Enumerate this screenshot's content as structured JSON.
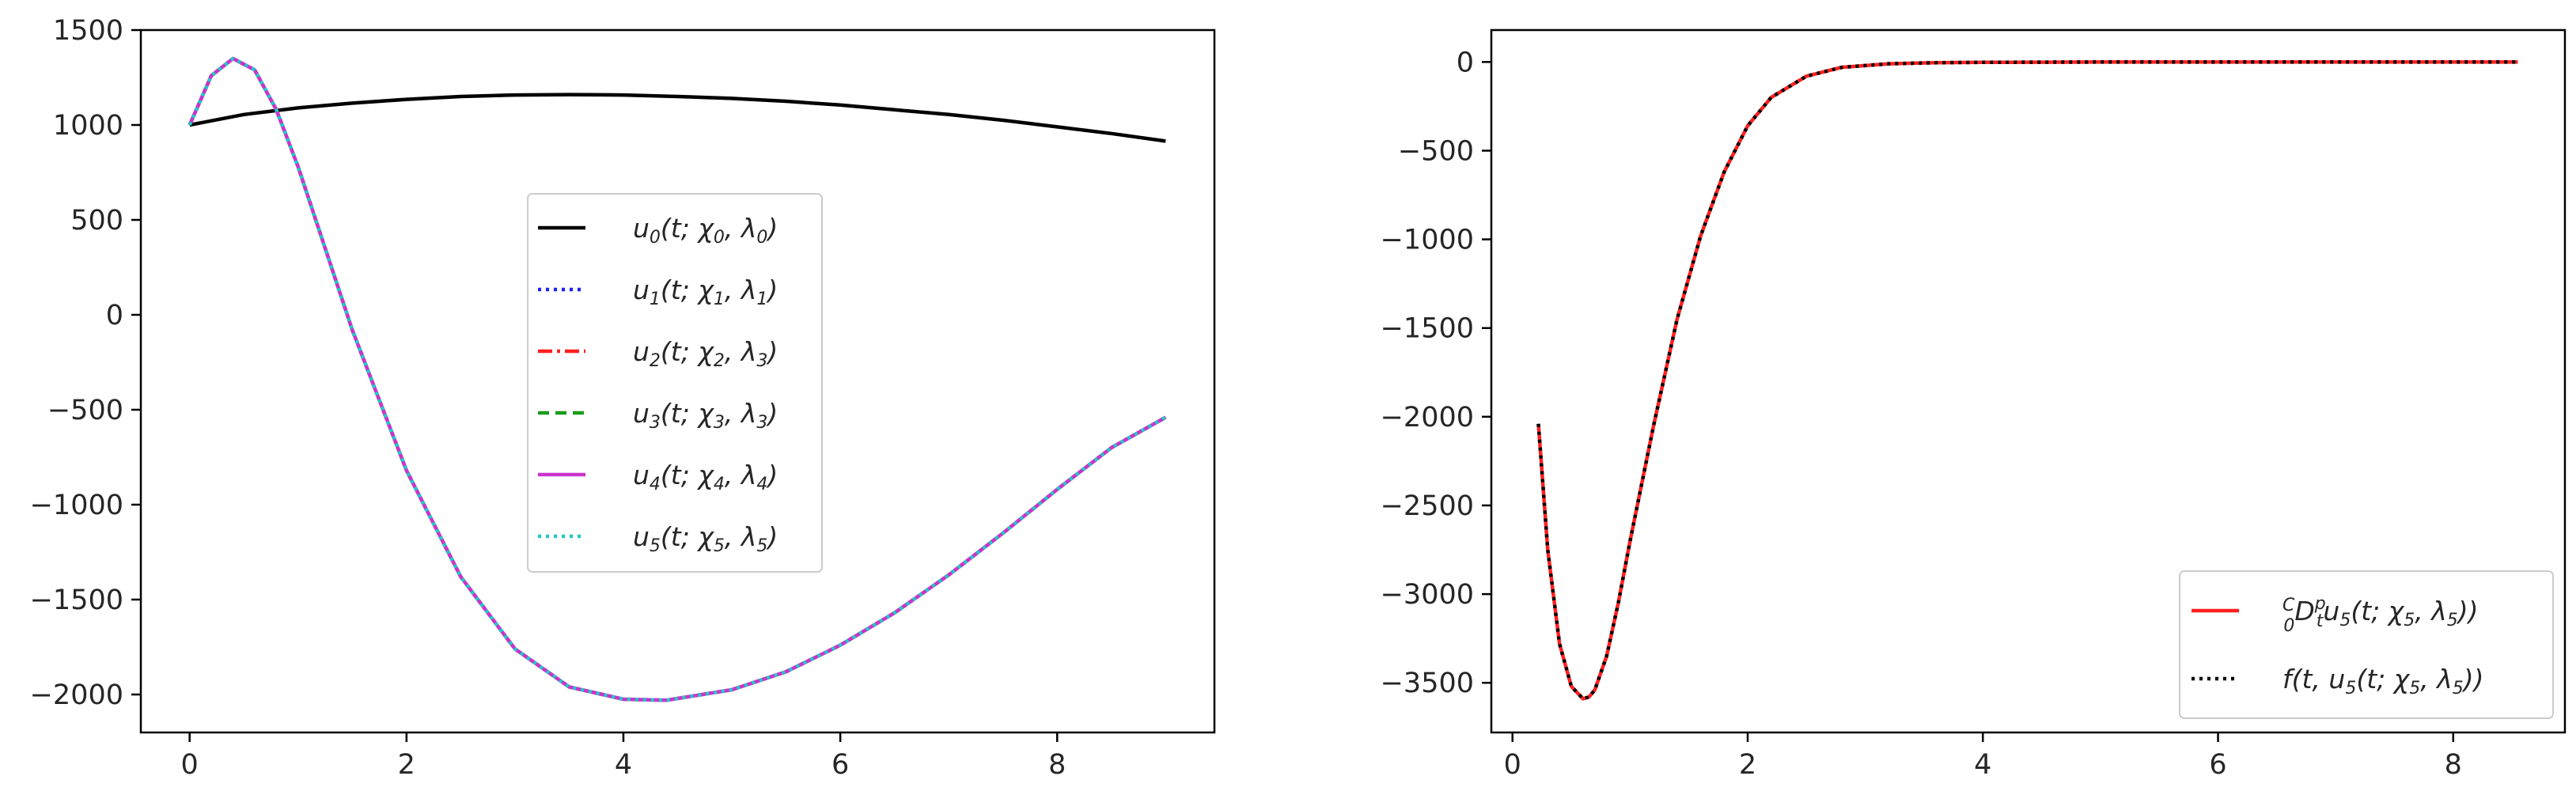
{
  "chart_data": [
    {
      "type": "line",
      "title": "",
      "xlabel": "",
      "ylabel": "",
      "xlim": [
        -0.45,
        9.45
      ],
      "ylim": [
        -2200,
        1500
      ],
      "x_ticks": [
        0,
        2,
        4,
        6,
        8
      ],
      "y_ticks": [
        1500,
        1000,
        500,
        0,
        -500,
        -1000,
        -1500,
        -2000
      ],
      "grid": false,
      "legend_position": "center-right",
      "series": [
        {
          "name": "u0(t; χ0, λ0)",
          "color": "#000000",
          "style": "solid",
          "x": [
            0,
            0.5,
            1,
            1.5,
            2,
            2.5,
            3,
            3.5,
            4,
            4.5,
            5,
            5.5,
            6,
            6.5,
            7,
            7.5,
            8,
            8.5,
            9
          ],
          "y": [
            1000,
            1055,
            1090,
            1115,
            1135,
            1150,
            1158,
            1160,
            1158,
            1150,
            1140,
            1125,
            1105,
            1080,
            1055,
            1025,
            990,
            955,
            915
          ]
        },
        {
          "name": "u1(t; χ1, λ1)",
          "color": "#1f1fff",
          "style": "dotted",
          "x": [
            0,
            0.2,
            0.4,
            0.6,
            0.8,
            1,
            1.5,
            2,
            2.5,
            3,
            3.5,
            4,
            4.4,
            5,
            5.5,
            6,
            6.5,
            7,
            7.5,
            8,
            8.5,
            9
          ],
          "y": [
            1000,
            1260,
            1350,
            1290,
            1080,
            780,
            -80,
            -820,
            -1380,
            -1760,
            -1960,
            -2025,
            -2030,
            -1975,
            -1880,
            -1740,
            -1570,
            -1370,
            -1150,
            -920,
            -700,
            -540
          ]
        },
        {
          "name": "u2(t; χ2, λ3)",
          "color": "#ff2020",
          "style": "dashdot",
          "x": [
            0,
            0.2,
            0.4,
            0.6,
            0.8,
            1,
            1.5,
            2,
            2.5,
            3,
            3.5,
            4,
            4.4,
            5,
            5.5,
            6,
            6.5,
            7,
            7.5,
            8,
            8.5,
            9
          ],
          "y": [
            1000,
            1260,
            1350,
            1290,
            1080,
            780,
            -80,
            -820,
            -1380,
            -1760,
            -1960,
            -2025,
            -2030,
            -1975,
            -1880,
            -1740,
            -1570,
            -1370,
            -1150,
            -920,
            -700,
            -540
          ]
        },
        {
          "name": "u3(t; χ3, λ3)",
          "color": "#1a9c1a",
          "style": "dashed",
          "x": [
            0,
            0.2,
            0.4,
            0.6,
            0.8,
            1,
            1.5,
            2,
            2.5,
            3,
            3.5,
            4,
            4.4,
            5,
            5.5,
            6,
            6.5,
            7,
            7.5,
            8,
            8.5,
            9
          ],
          "y": [
            1000,
            1260,
            1350,
            1290,
            1080,
            780,
            -80,
            -820,
            -1380,
            -1760,
            -1960,
            -2025,
            -2030,
            -1975,
            -1880,
            -1740,
            -1570,
            -1370,
            -1150,
            -920,
            -700,
            -540
          ]
        },
        {
          "name": "u4(t; χ4, λ4)",
          "color": "#cc33cc",
          "style": "solid",
          "x": [
            0,
            0.2,
            0.4,
            0.6,
            0.8,
            1,
            1.5,
            2,
            2.5,
            3,
            3.5,
            4,
            4.4,
            5,
            5.5,
            6,
            6.5,
            7,
            7.5,
            8,
            8.5,
            9
          ],
          "y": [
            1000,
            1260,
            1350,
            1290,
            1080,
            780,
            -80,
            -820,
            -1380,
            -1760,
            -1960,
            -2025,
            -2030,
            -1975,
            -1880,
            -1740,
            -1570,
            -1370,
            -1150,
            -920,
            -700,
            -540
          ]
        },
        {
          "name": "u5(t; χ5, λ5)",
          "color": "#22c8c8",
          "style": "dotted",
          "x": [
            0,
            0.2,
            0.4,
            0.6,
            0.8,
            1,
            1.5,
            2,
            2.5,
            3,
            3.5,
            4,
            4.4,
            5,
            5.5,
            6,
            6.5,
            7,
            7.5,
            8,
            8.5,
            9
          ],
          "y": [
            1000,
            1260,
            1350,
            1290,
            1080,
            780,
            -80,
            -820,
            -1380,
            -1760,
            -1960,
            -2025,
            -2030,
            -1975,
            -1880,
            -1740,
            -1570,
            -1370,
            -1150,
            -920,
            -700,
            -540
          ]
        }
      ]
    },
    {
      "type": "line",
      "title": "",
      "xlabel": "",
      "ylabel": "",
      "xlim": [
        -0.18,
        8.95
      ],
      "ylim": [
        -3780,
        180
      ],
      "x_ticks": [
        0,
        2,
        4,
        6,
        8
      ],
      "y_ticks": [
        0,
        -500,
        -1000,
        -1500,
        -2000,
        -2500,
        -3000,
        -3500
      ],
      "grid": false,
      "legend_position": "lower-right",
      "series": [
        {
          "name": "C0 Dtp u5(t; χ5, λ5))",
          "color": "#ff2020",
          "style": "solid",
          "x": [
            0.22,
            0.3,
            0.4,
            0.5,
            0.6,
            0.65,
            0.7,
            0.8,
            0.9,
            1.0,
            1.2,
            1.4,
            1.6,
            1.8,
            2.0,
            2.2,
            2.5,
            2.8,
            3.2,
            3.6,
            4.0,
            4.5,
            5,
            6,
            7,
            8,
            8.55
          ],
          "y": [
            -2040,
            -2750,
            -3280,
            -3520,
            -3590,
            -3580,
            -3540,
            -3350,
            -3050,
            -2700,
            -2050,
            -1450,
            -980,
            -620,
            -360,
            -200,
            -80,
            -30,
            -10,
            -4,
            -2,
            -1,
            0,
            0,
            0,
            0,
            0
          ]
        },
        {
          "name": "f(t, u5(t; χ5, λ5))",
          "color": "#000000",
          "style": "dotted",
          "x": [
            0.22,
            0.3,
            0.4,
            0.5,
            0.6,
            0.65,
            0.7,
            0.8,
            0.9,
            1.0,
            1.2,
            1.4,
            1.6,
            1.8,
            2.0,
            2.2,
            2.5,
            2.8,
            3.2,
            3.6,
            4.0,
            4.5,
            5,
            6,
            7,
            8,
            8.55
          ],
          "y": [
            -2040,
            -2750,
            -3280,
            -3520,
            -3590,
            -3580,
            -3540,
            -3350,
            -3050,
            -2700,
            -2050,
            -1450,
            -980,
            -620,
            -360,
            -200,
            -80,
            -30,
            -10,
            -4,
            -2,
            -1,
            0,
            0,
            0,
            0,
            0
          ]
        }
      ]
    }
  ],
  "tick_labels": {
    "left_y": [
      "1500",
      "1000",
      "500",
      "0",
      "−500",
      "−1000",
      "−1500",
      "−2000"
    ],
    "left_x": [
      "0",
      "2",
      "4",
      "6",
      "8"
    ],
    "right_y": [
      "0",
      "−500",
      "−1000",
      "−1500",
      "−2000",
      "−2500",
      "−3000",
      "−3500"
    ],
    "right_x": [
      "0",
      "2",
      "4",
      "6",
      "8"
    ]
  }
}
